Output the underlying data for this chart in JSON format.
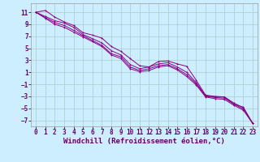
{
  "bg_color": "#cceeff",
  "grid_color": "#aacccc",
  "line_color": "#880088",
  "xlabel": "Windchill (Refroidissement éolien,°C)",
  "xlabel_fontsize": 6.5,
  "tick_fontsize": 5.5,
  "xlim": [
    -0.5,
    23.5
  ],
  "ylim": [
    -8,
    12.5
  ],
  "xticks": [
    0,
    1,
    2,
    3,
    4,
    5,
    6,
    7,
    8,
    9,
    10,
    11,
    12,
    13,
    14,
    15,
    16,
    17,
    18,
    19,
    20,
    21,
    22,
    23
  ],
  "yticks": [
    -7,
    -5,
    -3,
    -1,
    1,
    3,
    5,
    7,
    9,
    11
  ],
  "line1_x": [
    0,
    1,
    2,
    3,
    4,
    5,
    6,
    7,
    8,
    9,
    10,
    11,
    12,
    13,
    14,
    15,
    16,
    17,
    18,
    19,
    20,
    21,
    22,
    23
  ],
  "line1_y": [
    11.0,
    11.3,
    10.2,
    9.4,
    8.8,
    7.6,
    7.2,
    6.7,
    5.3,
    4.5,
    3.3,
    2.1,
    1.9,
    2.8,
    2.9,
    2.4,
    2.0,
    -0.3,
    -2.8,
    -3.0,
    -3.1,
    -4.3,
    -4.8,
    -7.5
  ],
  "line2_x": [
    0,
    1,
    2,
    3,
    4,
    5,
    6,
    7,
    8,
    9,
    10,
    11,
    12,
    13,
    14,
    15,
    16,
    17,
    18,
    19,
    20,
    21,
    22,
    23
  ],
  "line2_y": [
    11.0,
    10.3,
    9.6,
    9.2,
    8.5,
    7.3,
    6.6,
    5.9,
    4.6,
    3.9,
    2.3,
    1.6,
    1.9,
    2.4,
    2.6,
    1.9,
    1.0,
    -0.7,
    -2.9,
    -3.1,
    -3.1,
    -4.1,
    -4.9,
    -7.5
  ],
  "line3_x": [
    0,
    1,
    2,
    3,
    4,
    5,
    6,
    7,
    8,
    9,
    10,
    11,
    12,
    13,
    14,
    15,
    16,
    17,
    18,
    19,
    20,
    21,
    22,
    23
  ],
  "line3_y": [
    11.0,
    10.1,
    9.3,
    8.8,
    8.0,
    7.1,
    6.3,
    5.5,
    4.1,
    3.6,
    1.9,
    1.3,
    1.6,
    2.1,
    2.3,
    1.6,
    0.6,
    -0.9,
    -3.0,
    -3.2,
    -3.3,
    -4.3,
    -5.1,
    -7.5
  ],
  "line4_x": [
    0,
    1,
    2,
    3,
    4,
    5,
    6,
    7,
    8,
    9,
    10,
    11,
    12,
    13,
    14,
    15,
    16,
    17,
    18,
    19,
    20,
    21,
    22,
    23
  ],
  "line4_y": [
    11.0,
    10.0,
    9.0,
    8.5,
    7.7,
    6.9,
    6.1,
    5.3,
    3.9,
    3.3,
    1.6,
    1.1,
    1.3,
    1.9,
    2.1,
    1.4,
    0.3,
    -1.1,
    -3.1,
    -3.4,
    -3.5,
    -4.5,
    -5.3,
    -7.5
  ]
}
